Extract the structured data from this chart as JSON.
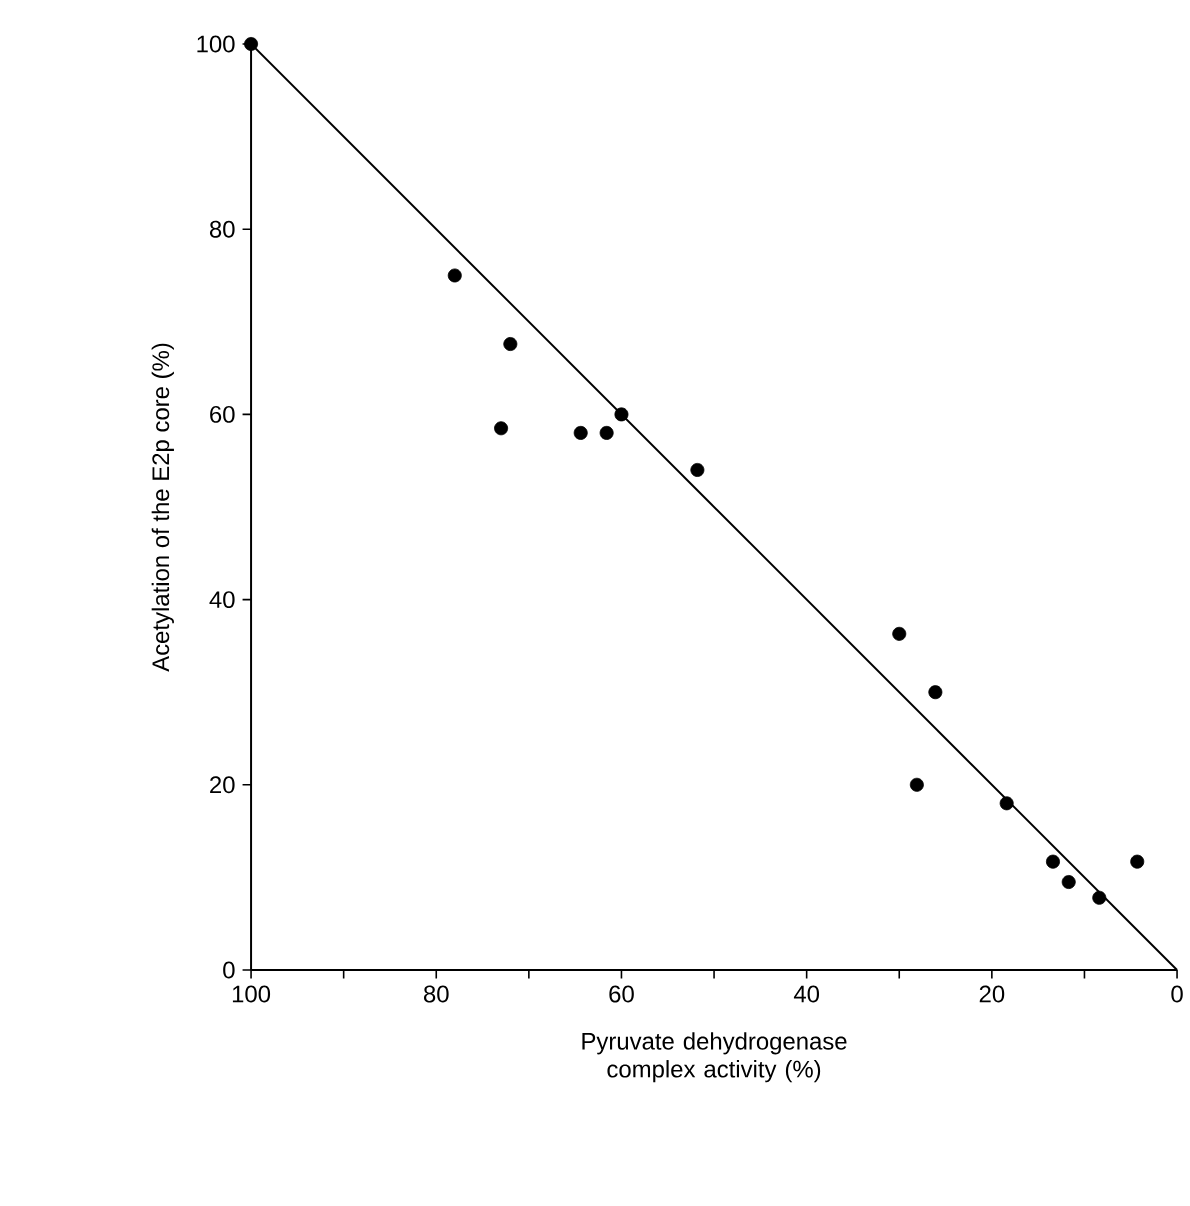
{
  "chart_data": {
    "type": "scatter",
    "xlabel": "Pyruvate dehydrogenase complex activity (%)",
    "ylabel": "Acetylation of the E2p core (%)",
    "xlim": [
      100,
      0
    ],
    "ylim": [
      0,
      100
    ],
    "xticks": [
      100,
      {
        "value": 90,
        "label": null
      },
      80,
      {
        "value": 70,
        "label": null
      },
      60,
      {
        "value": 50,
        "label": null
      },
      40,
      {
        "value": 30,
        "label": null
      },
      20,
      {
        "value": 10,
        "label": null
      },
      0
    ],
    "yticks": [
      0,
      20,
      40,
      60,
      80,
      100
    ],
    "marker": "circle",
    "series": [
      {
        "color": "#000000",
        "x": [
          100,
          78,
          72,
          73,
          64.4,
          61.6,
          60,
          51.8,
          30,
          26.1,
          28.1,
          18.4,
          13.4,
          11.7,
          8.4,
          4.3
        ],
        "values": [
          100,
          75,
          67.6,
          58.5,
          58,
          58,
          60,
          54,
          36.3,
          30,
          20,
          18,
          11.7,
          9.5,
          7.8,
          11.7
        ]
      },
      {
        "type": "line",
        "color": "#000000",
        "marker": "none",
        "line_style": "solid",
        "x": [
          100,
          0
        ],
        "values": [
          100,
          0
        ]
      }
    ]
  }
}
